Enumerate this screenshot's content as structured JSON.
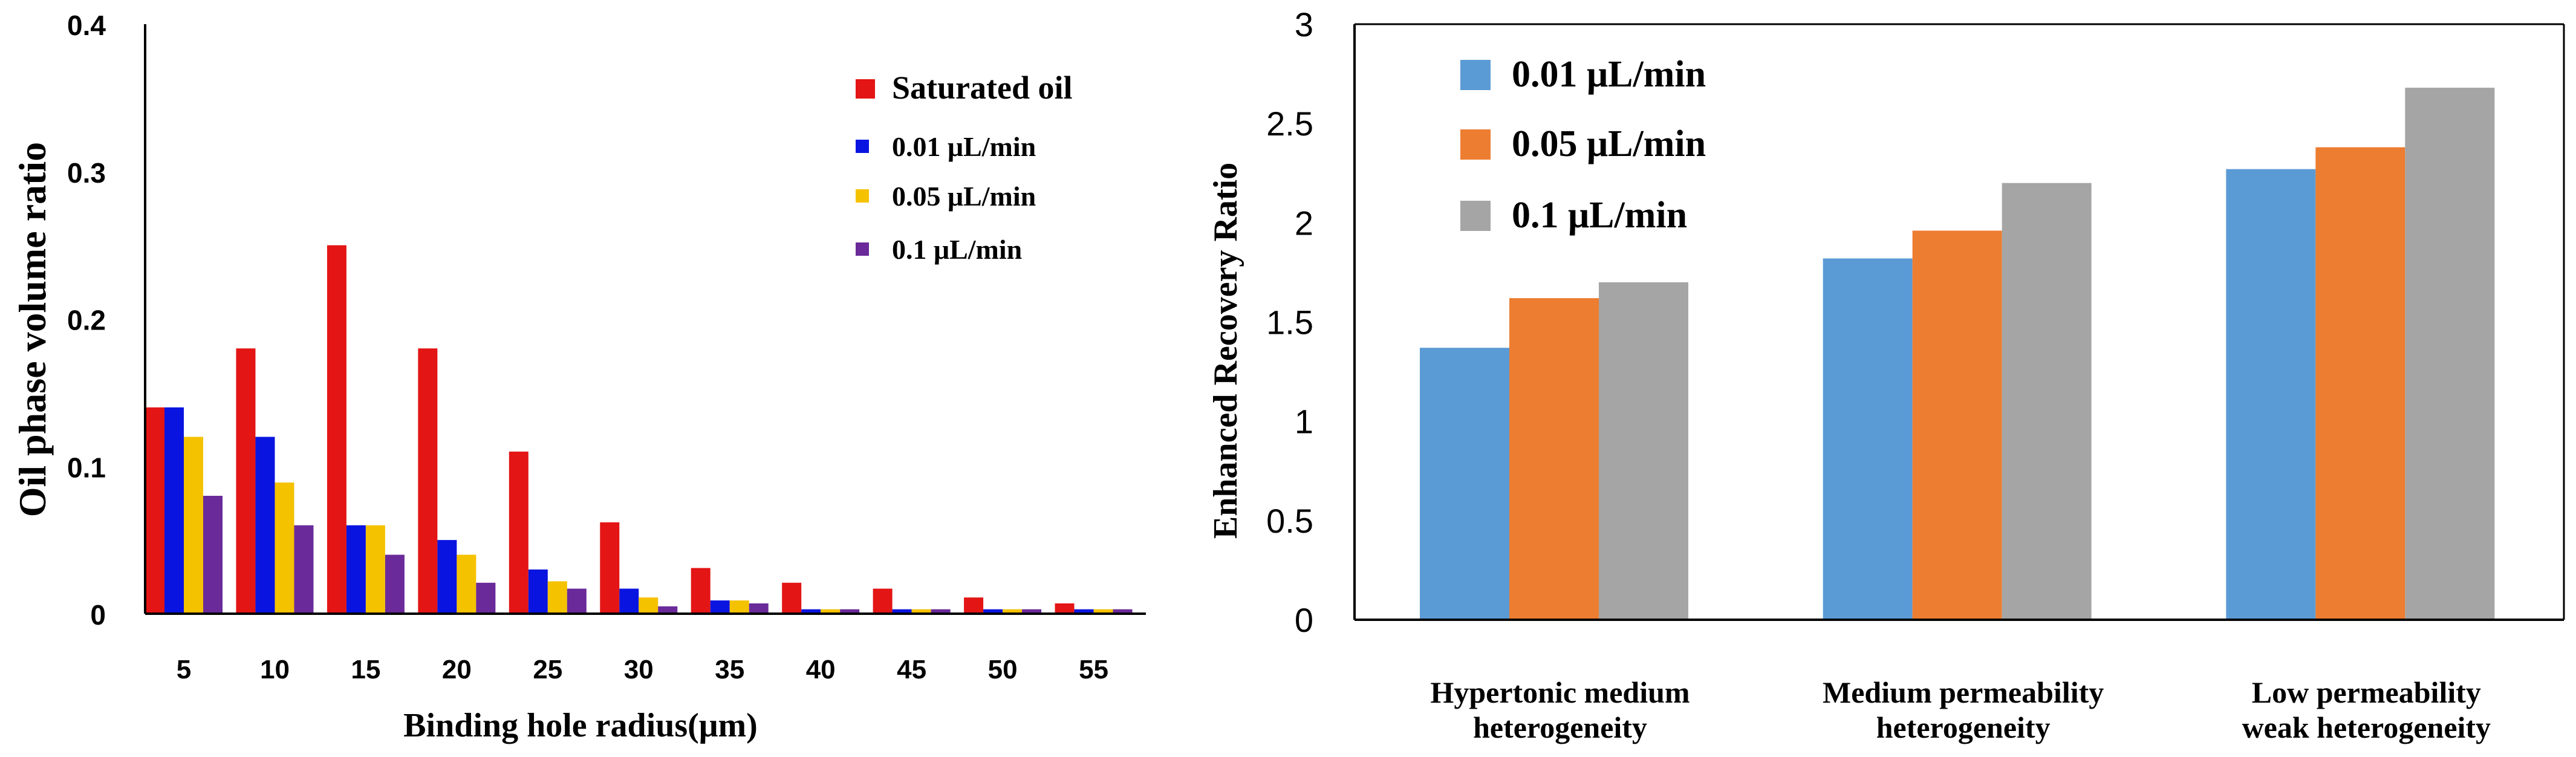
{
  "chart_data": [
    {
      "type": "bar",
      "xlabel": "Binding hole radius(μm)",
      "ylabel": "Oil phase volume ratio",
      "ylim": [
        0,
        0.4
      ],
      "yticks": [
        "0",
        "0.1",
        "0.2",
        "0.3",
        "0.4"
      ],
      "categories": [
        "5",
        "10",
        "15",
        "20",
        "25",
        "30",
        "35",
        "40",
        "45",
        "50",
        "55"
      ],
      "legend_position": "top-right",
      "grid": false,
      "series": [
        {
          "name": "Saturated oil",
          "color": "#e31515",
          "values": [
            0.14,
            0.18,
            0.25,
            0.18,
            0.11,
            0.062,
            0.031,
            0.021,
            0.017,
            0.011,
            0.007
          ]
        },
        {
          "name": "0.01 μL/min",
          "color": "#0a14e0",
          "values": [
            0.14,
            0.12,
            0.06,
            0.05,
            0.03,
            0.017,
            0.009,
            0.003,
            0.003,
            0.003,
            0.003
          ]
        },
        {
          "name": "0.05 μL/min",
          "color": "#f5c200",
          "values": [
            0.12,
            0.089,
            0.06,
            0.04,
            0.022,
            0.011,
            0.009,
            0.003,
            0.003,
            0.003,
            0.003
          ]
        },
        {
          "name": "0.1 μL/min",
          "color": "#6a2a9a",
          "values": [
            0.08,
            0.06,
            0.04,
            0.021,
            0.017,
            0.005,
            0.007,
            0.003,
            0.003,
            0.003,
            0.003
          ]
        }
      ]
    },
    {
      "type": "bar",
      "xlabel": "",
      "ylabel": "Enhanced Recovery Ratio",
      "ylim": [
        0,
        3
      ],
      "yticks": [
        "0",
        "0.5",
        "1",
        "1.5",
        "2",
        "2.5",
        "3"
      ],
      "categories": [
        [
          "Hypertonic medium",
          "heterogeneity"
        ],
        [
          "Medium permeability",
          "heterogeneity"
        ],
        [
          "Low permeability",
          "weak heterogeneity"
        ]
      ],
      "legend_position": "top-left",
      "grid": false,
      "series": [
        {
          "name": "0.01 μL/min",
          "color": "#5b9bd5",
          "values": [
            1.37,
            1.82,
            2.27
          ]
        },
        {
          "name": "0.05 μL/min",
          "color": "#ed7d31",
          "values": [
            1.62,
            1.96,
            2.38
          ]
        },
        {
          "name": "0.1 μL/min",
          "color": "#a5a5a5",
          "values": [
            1.7,
            2.2,
            2.68
          ]
        }
      ]
    }
  ]
}
